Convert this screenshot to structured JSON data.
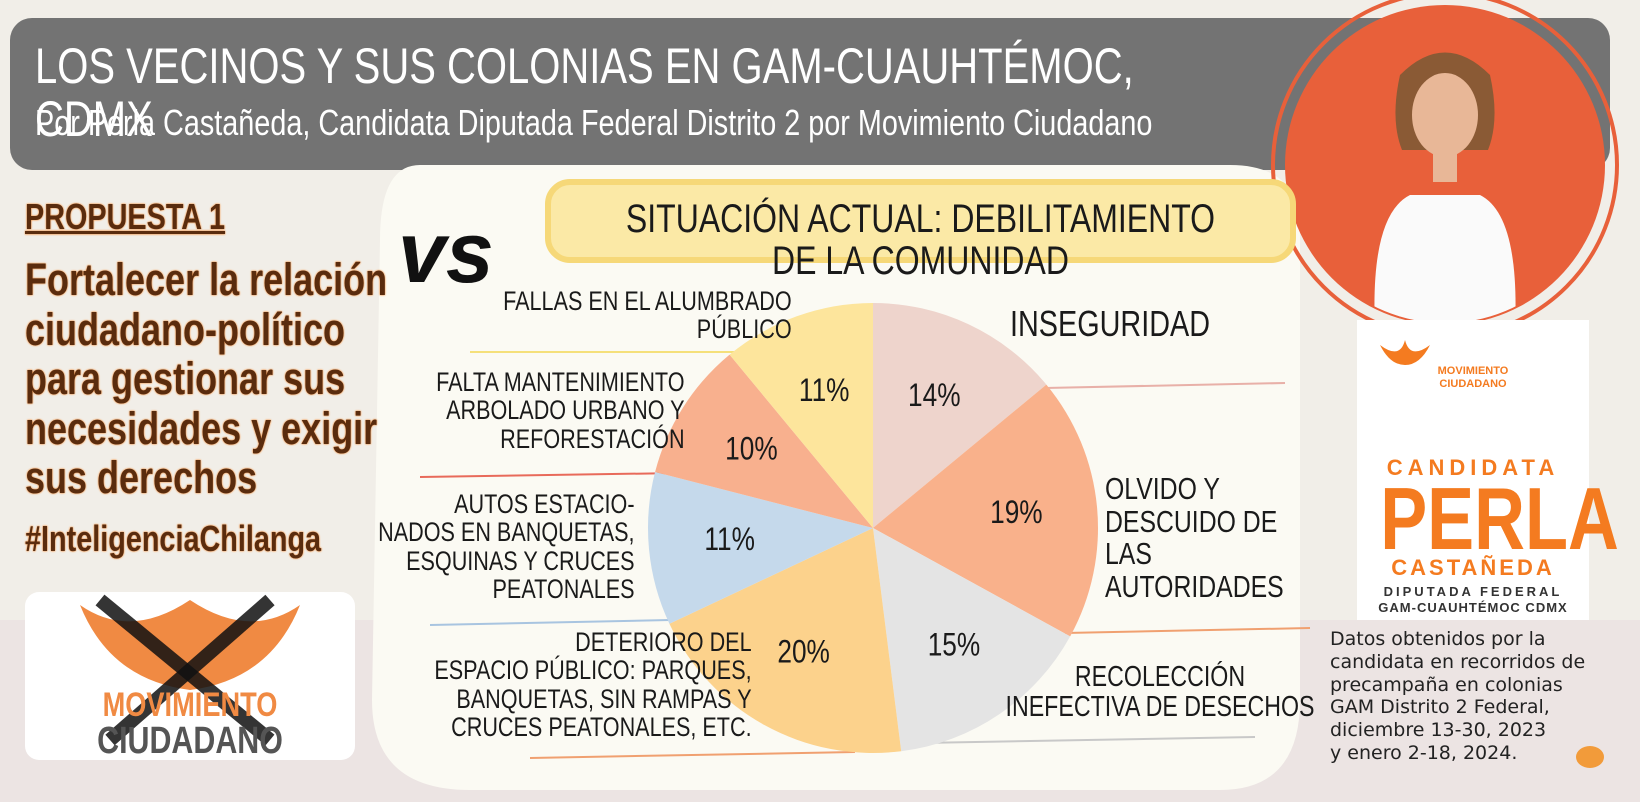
{
  "header": {
    "title": "LOS VECINOS Y SUS COLONIAS EN GAM-CUAUHTÉMOC, CDMX",
    "subtitle": "Por Perla Castañeda, Candidata Diputada Federal Distrito 2 por Movimiento Ciudadano"
  },
  "proposal": {
    "label": "PROPUESTA 1",
    "text": "Fortalecer la relación\nciudadano-político\npara gestionar sus\nnecesidades y exigir\nsus derechos",
    "hashtag": "#InteligenciaChilanga"
  },
  "left_logo": {
    "line1": "MOVIMIENTO",
    "line2": "CIUDADANO"
  },
  "versus": "vs",
  "chart_data": {
    "type": "pie",
    "title": "SITUACIÓN ACTUAL: DEBILITAMIENTO DE LA COMUNIDAD",
    "categories": [
      "INSEGURIDAD",
      "OLVIDO Y\nDESCUIDO DE\nLAS\nAUTORIDADES",
      "RECOLECCIÓN\nINEFECTIVA DE DESECHOS",
      "DETERIORO DEL\nESPACIO PÚBLICO: PARQUES,\nBANQUETAS, SIN RAMPAS Y\nCRUCES PEATONALES, ETC.",
      "AUTOS ESTACIO-\nNADOS EN BANQUETAS,\nESQUINAS Y CRUCES\nPEATONALES",
      "FALTA MANTENIMIENTO\nARBOLADO URBANO Y\nREFORESTACIÓN",
      "FALLAS EN EL ALUMBRADO\nPÚBLICO"
    ],
    "values": [
      14,
      19,
      15,
      20,
      11,
      10,
      11
    ],
    "value_labels": [
      "14%",
      "19%",
      "15%",
      "20%",
      "11%",
      "10%",
      "11%"
    ],
    "colors": [
      "#eed4cc",
      "#f9b18b",
      "#e4e4e4",
      "#fcd28c",
      "#c5d9eb",
      "#f8b08e",
      "#fde59c"
    ]
  },
  "candidate_card": {
    "logo_line1": "MOVIMIENTO",
    "logo_line2": "CIUDADANO",
    "role": "CANDIDATA",
    "first_name": "PERLA",
    "last_name": "CASTAÑEDA",
    "office": "DIPUTADA FEDERAL",
    "district": "GAM-CUAUHTÉMOC CDMX"
  },
  "source_note": "Datos obtenidos por la\ncandidata en recorridos de\nprecampaña en colonias\nGAM Distrito 2 Federal,\ndiciembre 13-30, 2023\ny enero 2-18, 2024."
}
